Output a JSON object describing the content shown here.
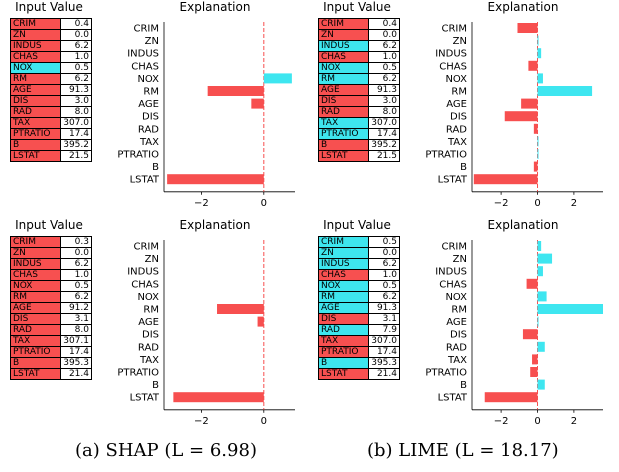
{
  "colors": {
    "negative": "#f74f4f",
    "positive": "#3ee6f0",
    "positive_cell": "#3ee6ee",
    "negative_cell": "#f75050"
  },
  "table_title": "Input Value",
  "chart_title": "Explanation",
  "captions": {
    "shap": "(a) SHAP (L = 6.98)",
    "lime": "(b) LIME (L = 18.17)"
  },
  "chart_data": [
    {
      "type": "bar",
      "orientation": "horizontal",
      "title": "Explanation",
      "categories": [
        "CRIM",
        "ZN",
        "INDUS",
        "CHAS",
        "NOX",
        "RM",
        "AGE",
        "DIS",
        "RAD",
        "TAX",
        "PTRATIO",
        "B",
        "LSTAT"
      ],
      "values": [
        0,
        0,
        0,
        0,
        0.9,
        -1.8,
        -0.4,
        0,
        0,
        0,
        0,
        0,
        -3.1
      ],
      "xlim": [
        -3.2,
        1.0
      ],
      "xticks": [
        -2,
        0
      ],
      "table": {
        "values": [
          "0.4",
          "0.0",
          "6.2",
          "1.0",
          "0.5",
          "6.2",
          "91.3",
          "3.0",
          "8.0",
          "307.0",
          "17.4",
          "395.2",
          "21.5"
        ],
        "signs": [
          "neg",
          "neg",
          "neg",
          "neg",
          "pos",
          "neg",
          "neg",
          "neg",
          "neg",
          "neg",
          "neg",
          "neg",
          "neg"
        ]
      }
    },
    {
      "type": "bar",
      "orientation": "horizontal",
      "title": "Explanation",
      "categories": [
        "CRIM",
        "ZN",
        "INDUS",
        "CHAS",
        "NOX",
        "RM",
        "AGE",
        "DIS",
        "RAD",
        "TAX",
        "PTRATIO",
        "B",
        "LSTAT"
      ],
      "values": [
        -1.1,
        0.05,
        0.2,
        -0.5,
        0.3,
        3.0,
        -0.9,
        -1.8,
        -0.2,
        0.05,
        0.05,
        -0.2,
        -3.5
      ],
      "xlim": [
        -3.6,
        3.6
      ],
      "xticks": [
        -2,
        0,
        2
      ],
      "table": {
        "values": [
          "0.4",
          "0.0",
          "6.2",
          "1.0",
          "0.5",
          "6.2",
          "91.3",
          "3.0",
          "8.0",
          "307.0",
          "17.4",
          "395.2",
          "21.5"
        ],
        "signs": [
          "neg",
          "neg",
          "pos",
          "neg",
          "pos",
          "pos",
          "neg",
          "neg",
          "neg",
          "pos",
          "pos",
          "neg",
          "neg"
        ]
      }
    },
    {
      "type": "bar",
      "orientation": "horizontal",
      "title": "Explanation",
      "categories": [
        "CRIM",
        "ZN",
        "INDUS",
        "CHAS",
        "NOX",
        "RM",
        "AGE",
        "DIS",
        "RAD",
        "TAX",
        "PTRATIO",
        "B",
        "LSTAT"
      ],
      "values": [
        0,
        0,
        0,
        0,
        0,
        -1.5,
        -0.2,
        0,
        0,
        0,
        0,
        0,
        -2.9
      ],
      "xlim": [
        -3.2,
        1.0
      ],
      "xticks": [
        -2,
        0
      ],
      "table": {
        "values": [
          "0.3",
          "0.0",
          "6.2",
          "1.0",
          "0.5",
          "6.2",
          "91.2",
          "3.1",
          "8.0",
          "307.1",
          "17.4",
          "395.3",
          "21.4"
        ],
        "signs": [
          "neg",
          "neg",
          "neg",
          "neg",
          "neg",
          "neg",
          "neg",
          "neg",
          "neg",
          "neg",
          "neg",
          "neg",
          "neg"
        ]
      }
    },
    {
      "type": "bar",
      "orientation": "horizontal",
      "title": "Explanation",
      "categories": [
        "CRIM",
        "ZN",
        "INDUS",
        "CHAS",
        "NOX",
        "RM",
        "AGE",
        "DIS",
        "RAD",
        "TAX",
        "PTRATIO",
        "B",
        "LSTAT"
      ],
      "values": [
        0.2,
        0.8,
        0.3,
        -0.6,
        0.5,
        3.6,
        0.05,
        -0.8,
        0.4,
        -0.3,
        -0.4,
        0.4,
        -2.9
      ],
      "xlim": [
        -3.6,
        3.6
      ],
      "xticks": [
        -2,
        0,
        2
      ],
      "table": {
        "values": [
          "0.5",
          "0.0",
          "6.2",
          "1.0",
          "0.5",
          "6.2",
          "91.3",
          "3.1",
          "7.9",
          "307.0",
          "17.4",
          "395.3",
          "21.4"
        ],
        "signs": [
          "pos",
          "pos",
          "pos",
          "neg",
          "pos",
          "pos",
          "pos",
          "neg",
          "pos",
          "neg",
          "neg",
          "pos",
          "neg"
        ]
      }
    }
  ]
}
